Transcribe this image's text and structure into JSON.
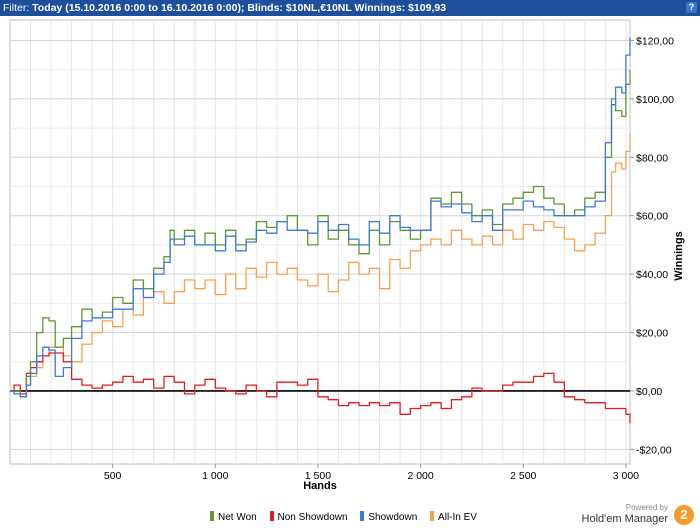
{
  "filter_bar": {
    "prefix": "Filter: ",
    "text": "Today (15.10.2016 0:00 to 16.10.2016 0:00); Blinds: $10NL,€10NL",
    "winnings_label": " Winnings: $109,93",
    "help_icon": "question-icon"
  },
  "legend": {
    "items": [
      {
        "label": "Net Won",
        "color": "#5a9a2e"
      },
      {
        "label": "Non Showdown",
        "color": "#e8191c"
      },
      {
        "label": "Showdown",
        "color": "#3b78e0"
      },
      {
        "label": "All-In EV",
        "color": "#f7a050"
      }
    ]
  },
  "powered_by": {
    "label": "Powered by",
    "name": "Hold'em Manager",
    "logo_text": "2"
  },
  "chart_data": {
    "type": "line",
    "xlabel": "Hands",
    "ylabel": "Winnings",
    "xlim": [
      0,
      3020
    ],
    "ylim": [
      -25,
      127
    ],
    "x_ticks": [
      500,
      1000,
      1500,
      2000,
      2500,
      3000
    ],
    "x_tick_labels": [
      "500",
      "1 000",
      "1 500",
      "2 000",
      "2 500",
      "3 000"
    ],
    "y_ticks": [
      -20,
      0,
      20,
      40,
      60,
      80,
      100,
      120
    ],
    "y_tick_labels": [
      "-$20,00",
      "$0,00",
      "$20,00",
      "$40,00",
      "$60,00",
      "$80,00",
      "$100,00",
      "$120,00"
    ],
    "grid": true,
    "legend_position": "bottom",
    "series": [
      {
        "name": "Net Won",
        "color": "#5a9a2e",
        "x": [
          0,
          50,
          80,
          100,
          130,
          160,
          190,
          220,
          260,
          300,
          350,
          400,
          450,
          500,
          550,
          600,
          650,
          700,
          750,
          780,
          800,
          850,
          900,
          950,
          1000,
          1050,
          1100,
          1150,
          1200,
          1250,
          1300,
          1350,
          1400,
          1450,
          1500,
          1550,
          1600,
          1650,
          1700,
          1750,
          1800,
          1850,
          1900,
          1950,
          2000,
          2050,
          2100,
          2150,
          2200,
          2250,
          2300,
          2350,
          2400,
          2450,
          2500,
          2550,
          2600,
          2650,
          2700,
          2750,
          2800,
          2850,
          2900,
          2930,
          2950,
          2980,
          3000,
          3020
        ],
        "y": [
          0,
          -2,
          5,
          10,
          20,
          25,
          24,
          15,
          18,
          22,
          28,
          25,
          27,
          32,
          30,
          38,
          35,
          42,
          46,
          55,
          52,
          55,
          50,
          54,
          50,
          55,
          50,
          52,
          58,
          56,
          58,
          60,
          55,
          50,
          60,
          52,
          55,
          50,
          47,
          55,
          50,
          58,
          55,
          52,
          55,
          66,
          64,
          68,
          64,
          60,
          62,
          57,
          64,
          66,
          68,
          70,
          66,
          64,
          60,
          62,
          66,
          68,
          80,
          100,
          96,
          94,
          105,
          110
        ]
      },
      {
        "name": "Non Showdown",
        "color": "#e8191c",
        "x": [
          0,
          20,
          50,
          80,
          100,
          130,
          160,
          190,
          220,
          260,
          300,
          350,
          400,
          450,
          500,
          550,
          600,
          650,
          700,
          750,
          800,
          850,
          900,
          950,
          1000,
          1050,
          1100,
          1150,
          1200,
          1250,
          1300,
          1350,
          1400,
          1450,
          1500,
          1550,
          1600,
          1650,
          1700,
          1750,
          1800,
          1850,
          1900,
          1950,
          2000,
          2050,
          2100,
          2150,
          2200,
          2250,
          2300,
          2350,
          2400,
          2450,
          2500,
          2550,
          2600,
          2650,
          2700,
          2750,
          2800,
          2850,
          2900,
          2950,
          3000,
          3020
        ],
        "y": [
          0,
          2,
          -1,
          6,
          8,
          10,
          12,
          13,
          13,
          10,
          4,
          2,
          1,
          2,
          3,
          5,
          3,
          4,
          1,
          5,
          3,
          -1,
          2,
          4,
          1,
          0,
          -1,
          2,
          0,
          -2,
          3,
          3,
          2,
          4,
          -2,
          -3,
          -5,
          -4,
          -5,
          -4,
          -5,
          -4,
          -8,
          -6,
          -5,
          -4,
          -6,
          -3,
          -2,
          1,
          0,
          0,
          2,
          3,
          3,
          5,
          6,
          3,
          -2,
          -3,
          -4,
          -4,
          -6,
          -6,
          -8,
          -11
        ]
      },
      {
        "name": "Showdown",
        "color": "#3b78e0",
        "x": [
          0,
          20,
          50,
          80,
          100,
          130,
          160,
          190,
          220,
          260,
          300,
          350,
          400,
          450,
          500,
          550,
          600,
          650,
          700,
          750,
          780,
          800,
          850,
          900,
          950,
          1000,
          1050,
          1100,
          1150,
          1200,
          1250,
          1300,
          1350,
          1400,
          1450,
          1500,
          1550,
          1600,
          1650,
          1700,
          1750,
          1800,
          1850,
          1900,
          1950,
          2000,
          2050,
          2100,
          2150,
          2200,
          2250,
          2300,
          2350,
          2400,
          2450,
          2500,
          2550,
          2600,
          2650,
          2700,
          2750,
          2800,
          2850,
          2900,
          2930,
          2950,
          2980,
          3000,
          3020
        ],
        "y": [
          0,
          -1,
          -2,
          2,
          6,
          12,
          15,
          14,
          5,
          8,
          18,
          24,
          25,
          25,
          28,
          28,
          35,
          32,
          40,
          44,
          52,
          50,
          53,
          50,
          50,
          48,
          53,
          48,
          51,
          55,
          54,
          58,
          55,
          55,
          54,
          58,
          55,
          57,
          52,
          50,
          58,
          54,
          60,
          56,
          55,
          55,
          65,
          63,
          64,
          61,
          58,
          60,
          55,
          62,
          62,
          65,
          63,
          62,
          60,
          60,
          60,
          63,
          65,
          85,
          98,
          104,
          102,
          115,
          121
        ]
      },
      {
        "name": "All-In EV",
        "color": "#f7a050",
        "x": [
          0,
          20,
          50,
          80,
          100,
          130,
          160,
          190,
          220,
          260,
          300,
          350,
          400,
          450,
          500,
          550,
          600,
          650,
          700,
          750,
          800,
          850,
          900,
          950,
          1000,
          1050,
          1100,
          1150,
          1200,
          1250,
          1300,
          1350,
          1400,
          1450,
          1500,
          1550,
          1600,
          1650,
          1700,
          1750,
          1800,
          1850,
          1900,
          1950,
          2000,
          2050,
          2100,
          2150,
          2200,
          2250,
          2300,
          2350,
          2400,
          2450,
          2500,
          2550,
          2600,
          2650,
          2700,
          2750,
          2800,
          2850,
          2900,
          2930,
          2950,
          2980,
          3000,
          3020
        ],
        "y": [
          0,
          -1,
          -2,
          2,
          5,
          8,
          12,
          15,
          15,
          12,
          10,
          16,
          20,
          24,
          22,
          28,
          26,
          32,
          34,
          30,
          34,
          38,
          35,
          38,
          33,
          40,
          35,
          42,
          39,
          44,
          40,
          42,
          38,
          36,
          40,
          34,
          38,
          44,
          40,
          42,
          35,
          45,
          42,
          48,
          50,
          52,
          50,
          55,
          52,
          50,
          53,
          50,
          55,
          52,
          57,
          55,
          58,
          56,
          52,
          48,
          50,
          54,
          60,
          75,
          78,
          76,
          82,
          88
        ]
      }
    ]
  }
}
